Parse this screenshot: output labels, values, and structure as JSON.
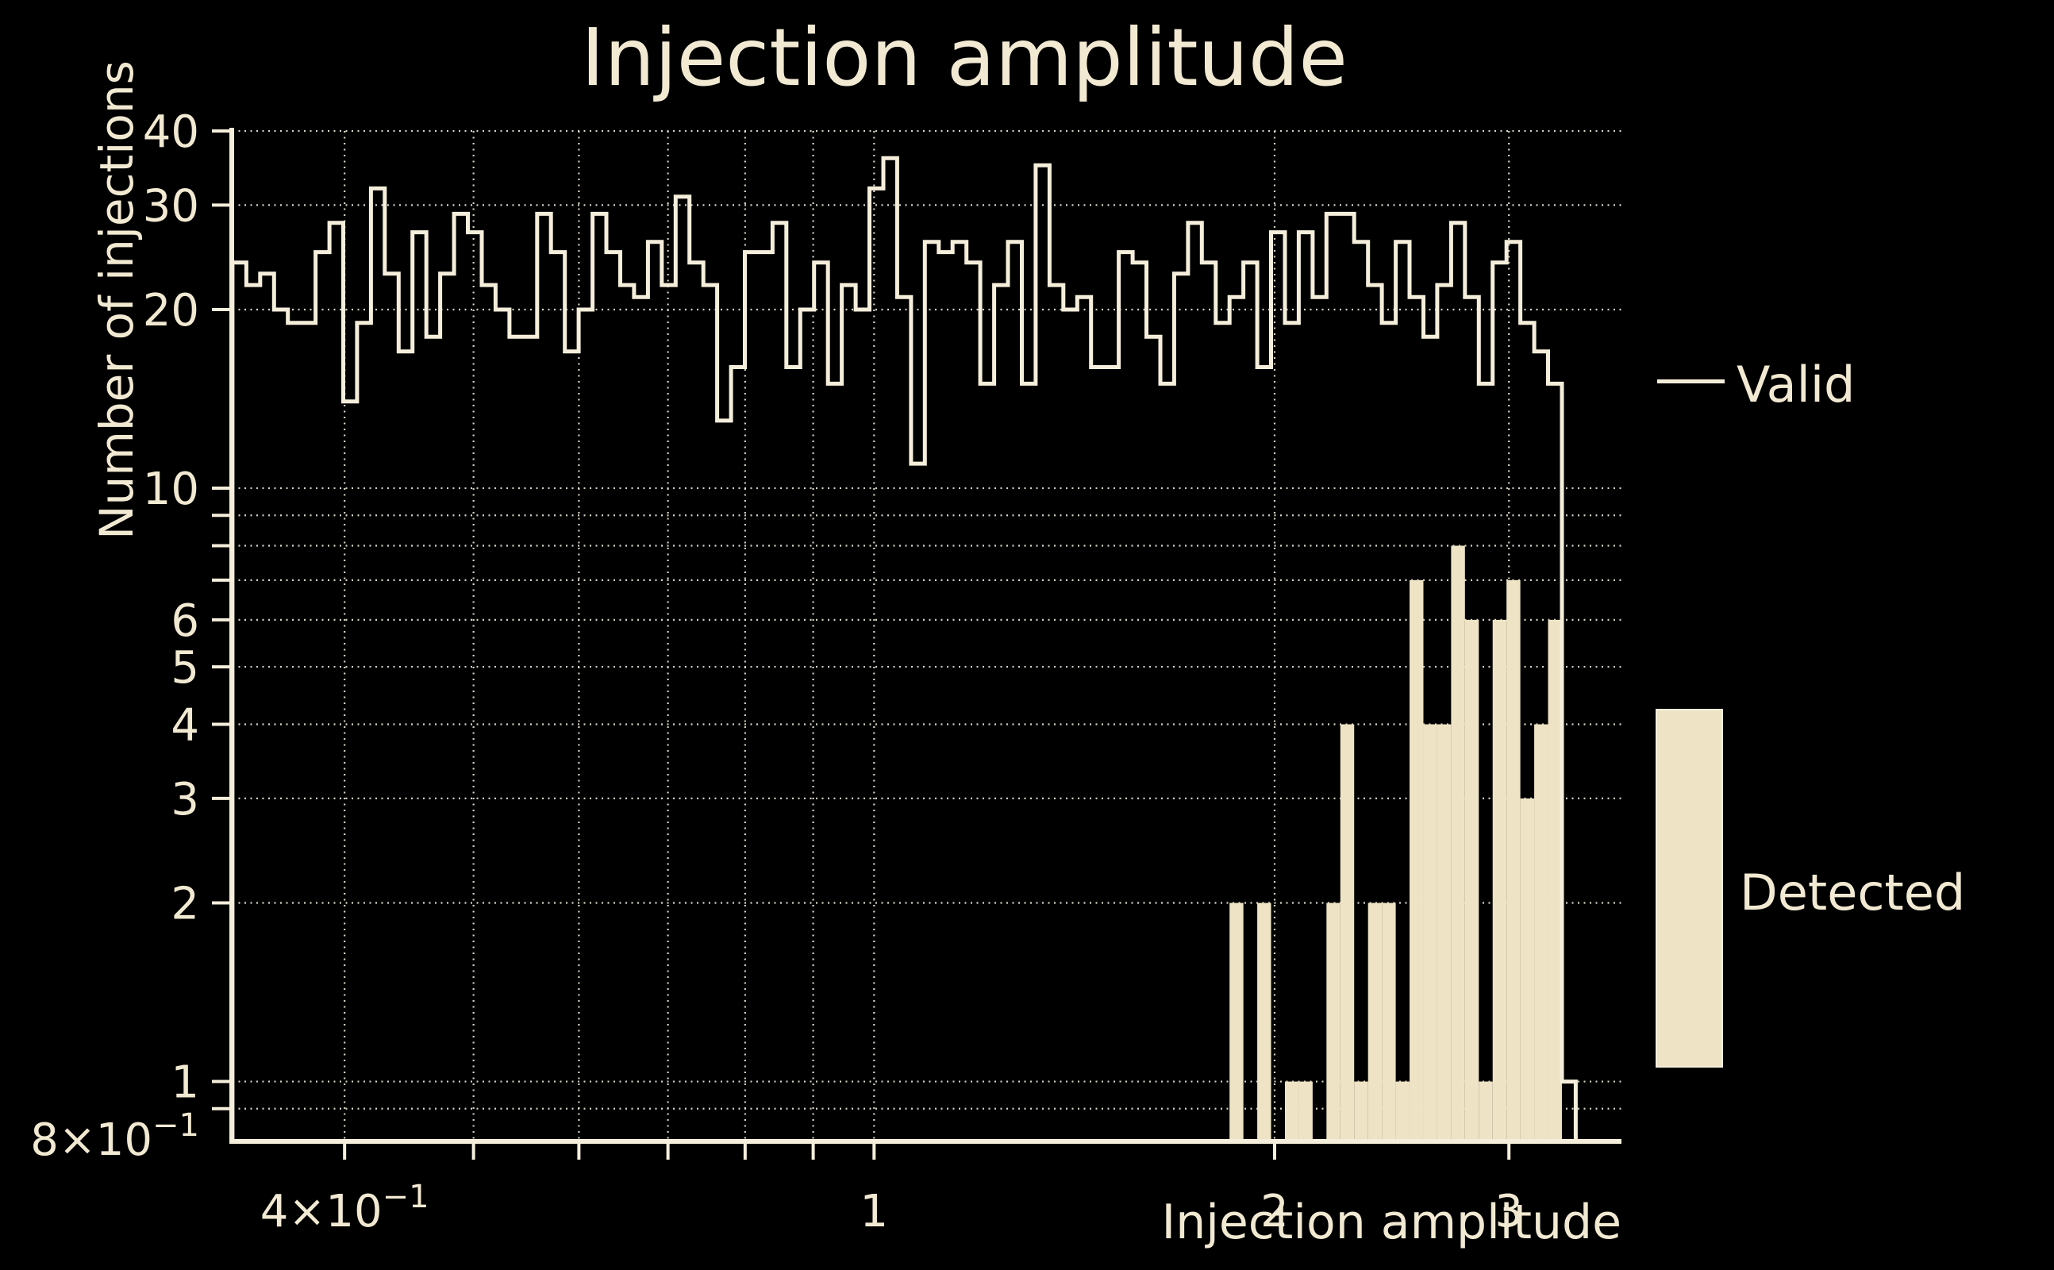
{
  "chart_data": {
    "type": "bar",
    "subtype": "log-log histogram: 'Valid' drawn as unfilled step outline, 'Detected' drawn as filled bars",
    "title": "Injection amplitude",
    "xlabel": "Injection amplitude",
    "ylabel": "Number of injections",
    "xlim": [
      0.3295,
      3.645
    ],
    "ylim": [
      0.8,
      40
    ],
    "xscale": "log",
    "yscale": "log",
    "grid": "dotted, on both axes",
    "legend_position": "outside right",
    "bins": {
      "first_edge": 0.32946,
      "ratio_per_bin": 1.024254,
      "count": 97
    },
    "series": [
      {
        "name": "Valid",
        "style": "step-outline",
        "values": [
          24,
          22,
          23,
          20,
          19,
          19,
          25,
          28,
          14,
          19,
          32,
          23,
          17,
          27,
          18,
          23,
          29,
          27,
          22,
          20,
          18,
          18,
          29,
          25,
          17,
          20,
          29,
          25,
          22,
          21,
          26,
          22,
          31,
          24,
          22,
          13,
          16,
          25,
          25,
          28,
          16,
          20,
          24,
          15,
          22,
          20,
          32,
          36,
          21,
          11,
          26,
          25,
          26,
          24,
          15,
          22,
          26,
          15,
          35,
          22,
          20,
          21,
          16,
          16,
          25,
          24,
          18,
          15,
          23,
          28,
          24,
          19,
          21,
          24,
          16,
          27,
          19,
          27,
          21,
          29,
          29,
          26,
          22,
          19,
          26,
          21,
          18,
          22,
          28,
          21,
          15,
          24,
          26,
          19,
          17,
          15,
          1
        ]
      },
      {
        "name": "Detected",
        "style": "filled-bar",
        "values": [
          0,
          0,
          0,
          0,
          0,
          0,
          0,
          0,
          0,
          0,
          0,
          0,
          0,
          0,
          0,
          0,
          0,
          0,
          0,
          0,
          0,
          0,
          0,
          0,
          0,
          0,
          0,
          0,
          0,
          0,
          0,
          0,
          0,
          0,
          0,
          0,
          0,
          0,
          0,
          0,
          0,
          0,
          0,
          0,
          0,
          0,
          0,
          0,
          0,
          0,
          0,
          0,
          0,
          0,
          0,
          0,
          0,
          0,
          0,
          0,
          0,
          0,
          0,
          0,
          0,
          0,
          0,
          0,
          0,
          0,
          0,
          0,
          2,
          0,
          2,
          0,
          1,
          1,
          0,
          2,
          4,
          1,
          2,
          2,
          1,
          7,
          4,
          4,
          8,
          6,
          1,
          6,
          7,
          3,
          4,
          6,
          0
        ]
      }
    ],
    "x_gridlines": [
      0.4,
      0.5,
      0.6,
      0.7,
      0.8,
      0.9,
      1,
      2,
      3
    ],
    "y_gridlines": [
      40,
      30,
      20,
      10,
      9,
      8,
      7,
      6,
      5,
      4,
      3,
      2,
      1,
      0.9
    ],
    "x_tick_labels": [
      {
        "v": 0.4,
        "base": "4×10",
        "exp": "−1"
      },
      {
        "v": 1,
        "base": "1"
      },
      {
        "v": 2,
        "base": "2"
      },
      {
        "v": 3,
        "base": "3"
      }
    ],
    "y_tick_labels": [
      {
        "v": 40,
        "base": "40"
      },
      {
        "v": 30,
        "base": "30"
      },
      {
        "v": 20,
        "base": "20"
      },
      {
        "v": 10,
        "base": "10"
      },
      {
        "v": 6,
        "base": "6"
      },
      {
        "v": 5,
        "base": "5"
      },
      {
        "v": 4,
        "base": "4"
      },
      {
        "v": 3,
        "base": "3"
      },
      {
        "v": 2,
        "base": "2"
      },
      {
        "v": 1,
        "base": "1"
      },
      {
        "v": 0.8,
        "base": "8×10",
        "exp": "−1"
      }
    ],
    "legend": [
      {
        "label": "Valid",
        "swatch": "line"
      },
      {
        "label": "Detected",
        "swatch": "filled-box"
      }
    ],
    "colors": {
      "background": "#000000",
      "text": "#f2e9d2",
      "line": "#f5eedb",
      "fill": "#eee3c5",
      "grid": "#efe9d9",
      "axis": "#f5eedb"
    }
  }
}
